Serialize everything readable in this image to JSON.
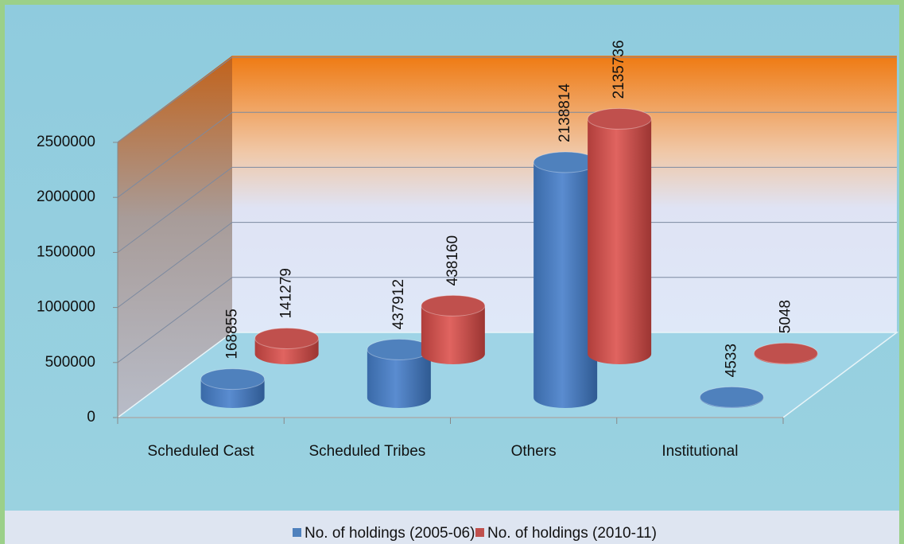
{
  "chart_data": {
    "type": "bar3d",
    "categories": [
      "Scheduled Cast",
      "Scheduled Tribes",
      "Others",
      "Institutional"
    ],
    "series": [
      {
        "name": "No. of holdings (2005-06)",
        "color": "#4f81bd",
        "values": [
          168855,
          437912,
          2138814,
          4533
        ]
      },
      {
        "name": "No. of holdings (2010-11)",
        "color": "#c0504d",
        "values": [
          141279,
          438160,
          2135736,
          5048
        ]
      }
    ],
    "ylim": [
      0,
      2500000
    ],
    "yticks": [
      0,
      500000,
      1000000,
      1500000,
      2000000,
      2500000
    ],
    "grid": true,
    "legend": "bottom"
  }
}
